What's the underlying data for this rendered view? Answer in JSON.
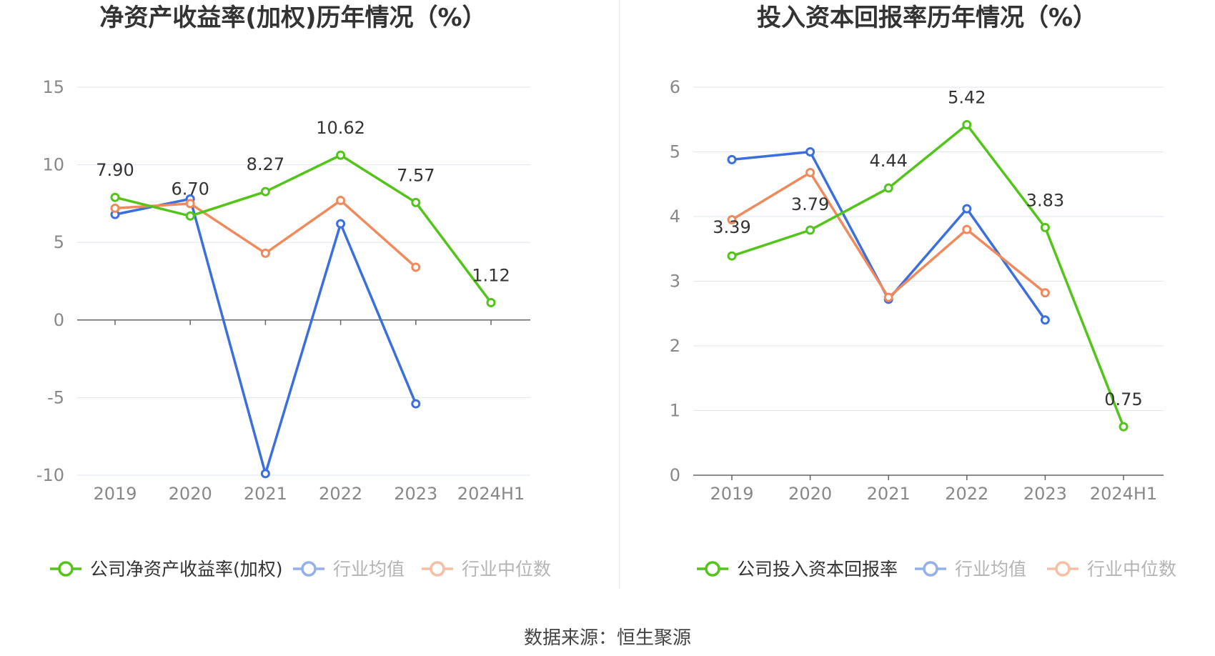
{
  "colors": {
    "company": "#52c41a",
    "average": "#3b6fdd",
    "median": "#f08a5d",
    "grid": "#dfe5f2",
    "axis": "#666666",
    "tick_text": "#888888",
    "title": "#333333",
    "label": "#333333"
  },
  "source_text": "数据来源：恒生聚源",
  "chart_data": [
    {
      "type": "line",
      "title": "净资产收益率(加权)历年情况（%）",
      "categories": [
        "2019",
        "2020",
        "2021",
        "2022",
        "2023",
        "2024H1"
      ],
      "ylim": [
        -10,
        15
      ],
      "yticks": [
        "15",
        "10",
        "5",
        "0",
        "-5",
        "-10"
      ],
      "grid": true,
      "legend_position": "bottom",
      "series": [
        {
          "name": "公司净资产收益率(加权)",
          "values": [
            7.9,
            6.7,
            8.27,
            10.62,
            7.57,
            1.12
          ],
          "labels": [
            "7.90",
            "6.70",
            "8.27",
            "10.62",
            "7.57",
            "1.12"
          ],
          "color_key": "company"
        },
        {
          "name": "行业均值",
          "values": [
            6.8,
            7.8,
            -9.9,
            6.2,
            -5.4,
            null
          ],
          "color_key": "average"
        },
        {
          "name": "行业中位数",
          "values": [
            7.2,
            7.5,
            4.3,
            7.7,
            3.4,
            null
          ],
          "color_key": "median"
        }
      ]
    },
    {
      "type": "line",
      "title": "投入资本回报率历年情况（%）",
      "categories": [
        "2019",
        "2020",
        "2021",
        "2022",
        "2023",
        "2024H1"
      ],
      "ylim": [
        0,
        6
      ],
      "yticks": [
        "6",
        "5",
        "4",
        "3",
        "2",
        "1",
        "0"
      ],
      "grid": true,
      "legend_position": "bottom",
      "series": [
        {
          "name": "公司投入资本回报率",
          "values": [
            3.39,
            3.79,
            4.44,
            5.42,
            3.83,
            0.75
          ],
          "labels": [
            "3.39",
            "3.79",
            "4.44",
            "5.42",
            "3.83",
            "0.75"
          ],
          "color_key": "company"
        },
        {
          "name": "行业均值",
          "values": [
            4.88,
            5.0,
            2.72,
            4.12,
            2.4,
            null
          ],
          "color_key": "average"
        },
        {
          "name": "行业中位数",
          "values": [
            3.95,
            4.68,
            2.75,
            3.8,
            2.82,
            null
          ],
          "color_key": "median"
        }
      ]
    }
  ]
}
